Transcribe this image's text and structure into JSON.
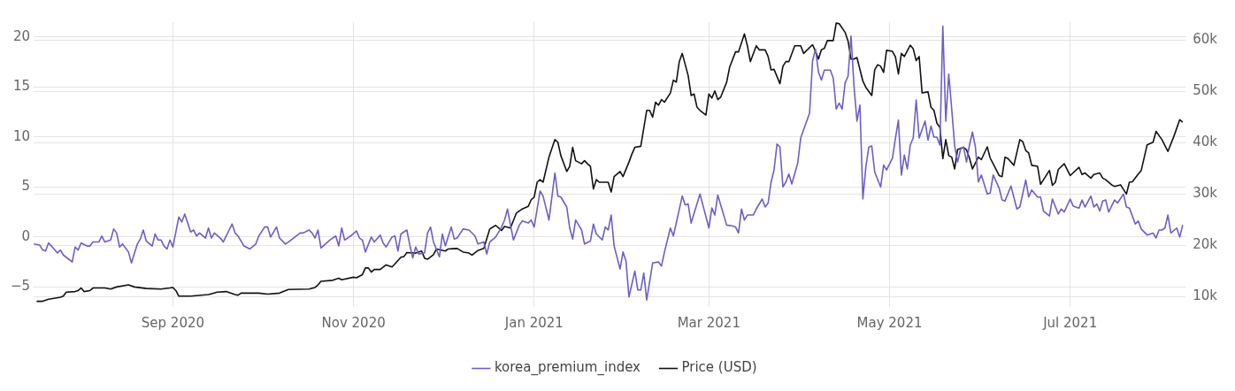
{
  "chart_data": {
    "type": "line",
    "xlim": [
      "2020-07-16",
      "2021-08-09"
    ],
    "xticks": [
      {
        "value": "2020-09-01",
        "label": "Sep 2020"
      },
      {
        "value": "2020-11-01",
        "label": "Nov 2020"
      },
      {
        "value": "2021-01-01",
        "label": "Jan 2021"
      },
      {
        "value": "2021-03-01",
        "label": "Mar 2021"
      },
      {
        "value": "2021-05-01",
        "label": "May 2021"
      },
      {
        "value": "2021-07-01",
        "label": "Jul 2021"
      }
    ],
    "ylim": [
      -7,
      21.5
    ],
    "yticks": [
      {
        "value": -5,
        "label": "−5"
      },
      0,
      5,
      10,
      15,
      20
    ],
    "y2lim": [
      8000,
      63500
    ],
    "y2ticks": [
      {
        "value": 10000,
        "label": "10k"
      },
      {
        "value": 20000,
        "label": "20k"
      },
      {
        "value": 30000,
        "label": "30k"
      },
      {
        "value": 40000,
        "label": "40k"
      },
      {
        "value": 50000,
        "label": "50k"
      },
      {
        "value": 60000,
        "label": "60k"
      }
    ],
    "grid": true,
    "legend": "bottom",
    "marker": "none",
    "line_style": "solid",
    "series": [
      {
        "name": "korea_premium_index",
        "color": "#6c5fc7",
        "x": [
          "2020-07-16",
          "2020-07-18",
          "2020-07-19",
          "2020-07-20",
          "2020-07-21",
          "2020-07-22",
          "2020-07-24",
          "2020-07-25",
          "2020-07-26",
          "2020-07-29",
          "2020-07-30",
          "2020-07-31",
          "2020-08-01",
          "2020-08-03",
          "2020-08-04",
          "2020-08-05",
          "2020-08-07",
          "2020-08-08",
          "2020-08-09",
          "2020-08-11",
          "2020-08-12",
          "2020-08-13",
          "2020-08-14",
          "2020-08-15",
          "2020-08-17",
          "2020-08-18",
          "2020-08-20",
          "2020-08-21",
          "2020-08-22",
          "2020-08-23",
          "2020-08-25",
          "2020-08-26",
          "2020-08-27",
          "2020-08-28",
          "2020-08-29",
          "2020-08-30",
          "2020-08-31",
          "2020-09-01",
          "2020-09-03",
          "2020-09-04",
          "2020-09-05",
          "2020-09-07",
          "2020-09-08",
          "2020-09-09",
          "2020-09-10",
          "2020-09-12",
          "2020-09-13",
          "2020-09-14",
          "2020-09-15",
          "2020-09-17",
          "2020-09-18",
          "2020-09-20",
          "2020-09-21",
          "2020-09-22",
          "2020-09-23",
          "2020-09-25",
          "2020-09-27",
          "2020-09-29",
          "2020-09-30",
          "2020-10-02",
          "2020-10-03",
          "2020-10-04",
          "2020-10-06",
          "2020-10-07",
          "2020-10-09",
          "2020-10-10",
          "2020-10-14",
          "2020-10-15",
          "2020-10-17",
          "2020-10-18",
          "2020-10-19",
          "2020-10-20",
          "2020-10-21",
          "2020-10-24",
          "2020-10-26",
          "2020-10-27",
          "2020-10-28",
          "2020-10-29",
          "2020-10-30",
          "2020-10-31",
          "2020-11-02",
          "2020-11-03",
          "2020-11-04",
          "2020-11-05",
          "2020-11-07",
          "2020-11-08",
          "2020-11-10",
          "2020-11-11",
          "2020-11-12",
          "2020-11-14",
          "2020-11-15",
          "2020-11-16",
          "2020-11-17",
          "2020-11-19",
          "2020-11-20",
          "2020-11-21",
          "2020-11-22",
          "2020-11-23",
          "2020-11-25",
          "2020-11-26",
          "2020-11-27",
          "2020-11-28",
          "2020-11-30",
          "2020-12-01",
          "2020-12-02",
          "2020-12-04",
          "2020-12-05",
          "2020-12-06",
          "2020-12-08",
          "2020-12-10",
          "2020-12-12",
          "2020-12-13",
          "2020-12-15",
          "2020-12-16",
          "2020-12-17",
          "2020-12-19",
          "2020-12-21",
          "2020-12-22",
          "2020-12-23",
          "2020-12-24",
          "2020-12-25",
          "2020-12-27",
          "2020-12-28",
          "2020-12-30",
          "2020-12-31",
          "2021-01-01",
          "2021-01-02",
          "2021-01-03",
          "2021-01-04",
          "2021-01-06",
          "2021-01-08",
          "2021-01-09",
          "2021-01-10",
          "2021-01-12",
          "2021-01-13",
          "2021-01-14",
          "2021-01-15",
          "2021-01-17",
          "2021-01-18",
          "2021-01-20",
          "2021-01-21",
          "2021-01-22",
          "2021-01-24",
          "2021-01-25",
          "2021-01-26",
          "2021-01-27",
          "2021-01-28",
          "2021-01-30",
          "2021-01-31",
          "2021-02-01",
          "2021-02-02",
          "2021-02-04",
          "2021-02-05",
          "2021-02-06",
          "2021-02-07",
          "2021-02-08",
          "2021-02-10",
          "2021-02-12",
          "2021-02-13",
          "2021-02-14",
          "2021-02-16",
          "2021-02-17",
          "2021-02-20",
          "2021-02-21",
          "2021-02-22",
          "2021-02-23",
          "2021-02-26",
          "2021-03-01",
          "2021-03-02",
          "2021-03-03",
          "2021-03-04",
          "2021-03-07",
          "2021-03-09",
          "2021-03-10",
          "2021-03-11",
          "2021-03-12",
          "2021-03-13",
          "2021-03-14",
          "2021-03-16",
          "2021-03-17",
          "2021-03-19",
          "2021-03-20",
          "2021-03-21",
          "2021-03-22",
          "2021-03-23",
          "2021-03-24",
          "2021-03-25",
          "2021-03-26",
          "2021-03-27",
          "2021-03-28",
          "2021-03-29",
          "2021-03-31",
          "2021-04-01",
          "2021-04-04",
          "2021-04-05",
          "2021-04-06",
          "2021-04-07",
          "2021-04-08",
          "2021-04-09",
          "2021-04-11",
          "2021-04-12",
          "2021-04-13",
          "2021-04-14",
          "2021-04-15",
          "2021-04-16",
          "2021-04-17",
          "2021-04-18",
          "2021-04-19",
          "2021-04-20",
          "2021-04-21",
          "2021-04-22",
          "2021-04-23",
          "2021-04-24",
          "2021-04-25",
          "2021-04-26",
          "2021-04-28",
          "2021-04-29",
          "2021-04-30",
          "2021-05-02",
          "2021-05-03",
          "2021-05-04",
          "2021-05-05",
          "2021-05-06",
          "2021-05-07",
          "2021-05-08",
          "2021-05-09",
          "2021-05-10",
          "2021-05-11",
          "2021-05-13",
          "2021-05-14",
          "2021-05-15",
          "2021-05-16",
          "2021-05-17",
          "2021-05-18",
          "2021-05-19",
          "2021-05-20",
          "2021-05-21",
          "2021-05-22",
          "2021-05-23",
          "2021-05-24",
          "2021-05-25",
          "2021-05-26",
          "2021-05-27",
          "2021-05-28",
          "2021-05-29",
          "2021-05-30",
          "2021-05-31",
          "2021-06-01",
          "2021-06-03",
          "2021-06-04",
          "2021-06-05",
          "2021-06-07",
          "2021-06-08",
          "2021-06-09",
          "2021-06-11",
          "2021-06-13",
          "2021-06-14",
          "2021-06-16",
          "2021-06-17",
          "2021-06-18",
          "2021-06-20",
          "2021-06-21",
          "2021-06-22",
          "2021-06-24",
          "2021-06-25",
          "2021-06-27",
          "2021-06-28",
          "2021-06-29",
          "2021-07-01",
          "2021-07-02",
          "2021-07-04",
          "2021-07-05",
          "2021-07-06",
          "2021-07-08",
          "2021-07-09",
          "2021-07-10",
          "2021-07-11",
          "2021-07-12",
          "2021-07-13",
          "2021-07-14",
          "2021-07-16",
          "2021-07-17",
          "2021-07-19",
          "2021-07-20",
          "2021-07-21",
          "2021-07-23",
          "2021-07-24",
          "2021-07-25",
          "2021-07-27",
          "2021-07-29",
          "2021-07-30",
          "2021-07-31",
          "2021-08-01",
          "2021-08-02",
          "2021-08-03",
          "2021-08-04",
          "2021-08-06",
          "2021-08-07",
          "2021-08-08"
        ],
        "values": [
          -0.7,
          -0.8,
          -1.3,
          -1.4,
          -0.6,
          -0.9,
          -1.6,
          -1.3,
          -1.8,
          -2.5,
          -1.0,
          -1.3,
          -0.6,
          -0.9,
          -0.9,
          -0.5,
          -0.5,
          0.1,
          -0.5,
          -0.3,
          0.8,
          0.4,
          -1.0,
          -0.7,
          -1.5,
          -2.6,
          -0.7,
          -0.2,
          0.7,
          -0.4,
          -0.9,
          0.3,
          -0.3,
          -0.3,
          -0.9,
          -1.2,
          -0.3,
          -1.0,
          2.0,
          1.5,
          2.3,
          0.5,
          0.7,
          0.1,
          0.4,
          -0.1,
          0.9,
          -0.1,
          0.4,
          -0.1,
          -0.5,
          0.7,
          1.3,
          0.4,
          0.1,
          -0.9,
          -1.2,
          -0.7,
          0.1,
          1.0,
          1.0,
          0,
          1.0,
          -0.1,
          -0.7,
          -0.5,
          0.4,
          0.4,
          0.7,
          0.4,
          -0.1,
          0.7,
          -1.1,
          -0.3,
          0.1,
          -0.9,
          0.9,
          -0.3,
          -0.1,
          0.1,
          0.6,
          -0.1,
          -0.3,
          -1.5,
          0,
          -0.5,
          0.2,
          -0.6,
          -1.0,
          0,
          0.1,
          -1.4,
          0.3,
          0.7,
          -0.8,
          -2.1,
          -1.0,
          -1.7,
          -1.6,
          0.4,
          1.0,
          -0.5,
          -2.0,
          0.3,
          -0.9,
          1.0,
          -0.2,
          -0.1,
          0.8,
          0.7,
          0.1,
          -0.7,
          -0.5,
          -1.7,
          -0.5,
          0,
          1.0,
          1.7,
          2.8,
          1.2,
          -0.3,
          1.2,
          1.6,
          1.4,
          1.7,
          1.0,
          2.8,
          4.6,
          4.1,
          1.7,
          6.4,
          4.1,
          4.0,
          3.0,
          0.9,
          -0.2,
          1.7,
          0.7,
          -0.7,
          -0.4,
          1.3,
          0.3,
          -0.3,
          1.0,
          0.7,
          2.2,
          -0.9,
          -3.2,
          -1.5,
          -2.4,
          -6.0,
          -3.4,
          -5.3,
          -5.3,
          -3.6,
          -6.3,
          -2.6,
          -2.5,
          -2.9,
          -1.5,
          0.9,
          0.1,
          4.1,
          3.2,
          3.3,
          1.4,
          4.3,
          0.9,
          2.9,
          2.2,
          4.2,
          1.2,
          1.1,
          1.0,
          0.4,
          2.8,
          1.7,
          2.2,
          2.2,
          2.8,
          3.8,
          3.0,
          3.4,
          5.5,
          6.7,
          9.3,
          9.0,
          5.0,
          5.5,
          6.3,
          5.3,
          7.4,
          9.9,
          12.4,
          17.6,
          18.8,
          16.5,
          15.7,
          16.7,
          16.7,
          15.9,
          12.8,
          13.4,
          12.8,
          15.4,
          16.1,
          20.1,
          15.1,
          11.6,
          13.2,
          3.8,
          7.0,
          9.0,
          9.1,
          6.5,
          5.0,
          7.2,
          6.7,
          7.9,
          9.9,
          11.7,
          6.2,
          8.2,
          6.8,
          9.2,
          9.9,
          13.7,
          9.9,
          11.6,
          9.7,
          11.1,
          10.0,
          10.0,
          9.2,
          21.1,
          11.6,
          16.3,
          12.8,
          9.1,
          7.5,
          8.8,
          9.0,
          7.5,
          9.2,
          10.5,
          9.0,
          5.5,
          6.2,
          4.3,
          4.4,
          6.2,
          4.9,
          3.7,
          3.6,
          5.1,
          2.8,
          3.0,
          5.7,
          4.0,
          4.7,
          4.0,
          4.0,
          2.6,
          2.1,
          3.8,
          2.3,
          2.8,
          2.5,
          3.8,
          3.1,
          2.9,
          3.7,
          3.0,
          4.1,
          3.0,
          3.3,
          2.6,
          3.6,
          3.7,
          2.5,
          3.7,
          3.4,
          4.3,
          3.0,
          2.9,
          1.3,
          1.6,
          0.8,
          0.2,
          0.4,
          -0.1,
          0.7,
          0.7,
          0.9,
          2.2,
          0.4,
          0.9,
          0,
          1.2
        ]
      },
      {
        "name": "Price (USD)",
        "color": "#111111",
        "axis": "y2",
        "x": [
          "2020-07-17",
          "2020-07-19",
          "2020-07-21",
          "2020-07-22",
          "2020-07-25",
          "2020-07-26",
          "2020-07-27",
          "2020-07-30",
          "2020-07-31",
          "2020-08-01",
          "2020-08-02",
          "2020-08-04",
          "2020-08-05",
          "2020-08-09",
          "2020-08-11",
          "2020-08-13",
          "2020-08-17",
          "2020-08-19",
          "2020-08-23",
          "2020-08-28",
          "2020-08-31",
          "2020-09-01",
          "2020-09-02",
          "2020-09-03",
          "2020-09-07",
          "2020-09-13",
          "2020-09-16",
          "2020-09-19",
          "2020-09-22",
          "2020-09-23",
          "2020-09-24",
          "2020-09-30",
          "2020-10-03",
          "2020-10-07",
          "2020-10-10",
          "2020-10-17",
          "2020-10-19",
          "2020-10-20",
          "2020-10-21",
          "2020-10-25",
          "2020-10-27",
          "2020-10-28",
          "2020-11-01",
          "2020-11-02",
          "2020-11-04",
          "2020-11-05",
          "2020-11-06",
          "2020-11-07",
          "2020-11-08",
          "2020-11-10",
          "2020-11-12",
          "2020-11-14",
          "2020-11-15",
          "2020-11-17",
          "2020-11-18",
          "2020-11-19",
          "2020-11-22",
          "2020-11-24",
          "2020-11-25",
          "2020-11-26",
          "2020-11-28",
          "2020-11-29",
          "2020-12-02",
          "2020-12-03",
          "2020-12-06",
          "2020-12-08",
          "2020-12-10",
          "2020-12-11",
          "2020-12-13",
          "2020-12-15",
          "2020-12-17",
          "2020-12-19",
          "2020-12-21",
          "2020-12-22",
          "2020-12-24",
          "2020-12-26",
          "2020-12-28",
          "2020-12-30",
          "2020-12-31",
          "2021-01-01",
          "2021-01-02",
          "2021-01-03",
          "2021-01-04",
          "2021-01-06",
          "2021-01-08",
          "2021-01-09",
          "2021-01-10",
          "2021-01-12",
          "2021-01-13",
          "2021-01-14",
          "2021-01-15",
          "2021-01-17",
          "2021-01-18",
          "2021-01-19",
          "2021-01-20",
          "2021-01-21",
          "2021-01-22",
          "2021-01-23",
          "2021-01-26",
          "2021-01-27",
          "2021-01-28",
          "2021-01-30",
          "2021-01-31",
          "2021-02-02",
          "2021-02-03",
          "2021-02-04",
          "2021-02-06",
          "2021-02-08",
          "2021-02-09",
          "2021-02-10",
          "2021-02-11",
          "2021-02-12",
          "2021-02-13",
          "2021-02-14",
          "2021-02-16",
          "2021-02-17",
          "2021-02-18",
          "2021-02-19",
          "2021-02-20",
          "2021-02-22",
          "2021-02-23",
          "2021-02-24",
          "2021-02-25",
          "2021-02-26",
          "2021-02-28",
          "2021-03-01",
          "2021-03-02",
          "2021-03-03",
          "2021-03-04",
          "2021-03-05",
          "2021-03-07",
          "2021-03-08",
          "2021-03-10",
          "2021-03-11",
          "2021-03-13",
          "2021-03-14",
          "2021-03-15",
          "2021-03-17",
          "2021-03-18",
          "2021-03-20",
          "2021-03-21",
          "2021-03-22",
          "2021-03-23",
          "2021-03-25",
          "2021-03-26",
          "2021-03-27",
          "2021-03-28",
          "2021-03-30",
          "2021-04-01",
          "2021-04-02",
          "2021-04-05",
          "2021-04-06",
          "2021-04-07",
          "2021-04-08",
          "2021-04-09",
          "2021-04-10",
          "2021-04-12",
          "2021-04-13",
          "2021-04-14",
          "2021-04-16",
          "2021-04-17",
          "2021-04-18",
          "2021-04-19",
          "2021-04-20",
          "2021-04-22",
          "2021-04-23",
          "2021-04-25",
          "2021-04-26",
          "2021-04-27",
          "2021-04-28",
          "2021-04-29",
          "2021-04-30",
          "2021-05-02",
          "2021-05-03",
          "2021-05-04",
          "2021-05-05",
          "2021-05-06",
          "2021-05-08",
          "2021-05-09",
          "2021-05-10",
          "2021-05-11",
          "2021-05-12",
          "2021-05-14",
          "2021-05-15",
          "2021-05-16",
          "2021-05-17",
          "2021-05-18",
          "2021-05-19",
          "2021-05-20",
          "2021-05-21",
          "2021-05-22",
          "2021-05-23",
          "2021-05-24",
          "2021-05-26",
          "2021-05-27",
          "2021-05-28",
          "2021-05-29",
          "2021-05-31",
          "2021-06-01",
          "2021-06-03",
          "2021-06-04",
          "2021-06-05",
          "2021-06-07",
          "2021-06-08",
          "2021-06-09",
          "2021-06-10",
          "2021-06-12",
          "2021-06-14",
          "2021-06-15",
          "2021-06-16",
          "2021-06-17",
          "2021-06-18",
          "2021-06-20",
          "2021-06-21",
          "2021-06-24",
          "2021-06-25",
          "2021-06-26",
          "2021-06-27",
          "2021-06-29",
          "2021-07-01",
          "2021-07-04",
          "2021-07-05",
          "2021-07-06",
          "2021-07-08",
          "2021-07-09",
          "2021-07-11",
          "2021-07-12",
          "2021-07-13",
          "2021-07-15",
          "2021-07-16",
          "2021-07-18",
          "2021-07-20",
          "2021-07-21",
          "2021-07-22",
          "2021-07-24",
          "2021-07-25",
          "2021-07-27",
          "2021-07-29",
          "2021-07-30",
          "2021-08-01",
          "2021-08-03",
          "2021-08-05",
          "2021-08-07",
          "2021-08-08"
        ],
        "values": [
          9100,
          9100,
          9500,
          9600,
          9900,
          10100,
          10900,
          11000,
          11200,
          11700,
          11000,
          11200,
          11700,
          11700,
          11500,
          11900,
          12300,
          11900,
          11600,
          11500,
          11700,
          11800,
          11200,
          10100,
          10100,
          10400,
          10900,
          11000,
          10400,
          10300,
          10700,
          10700,
          10500,
          10700,
          11400,
          11500,
          11800,
          12300,
          13000,
          13200,
          13600,
          13300,
          13800,
          13700,
          14300,
          15600,
          15600,
          14800,
          15300,
          15300,
          16200,
          15800,
          16400,
          17700,
          17800,
          18600,
          18500,
          18900,
          17500,
          17300,
          18200,
          19300,
          18900,
          19300,
          19400,
          18700,
          18500,
          18100,
          19000,
          19400,
          23200,
          23900,
          22900,
          23700,
          23400,
          26300,
          27100,
          27600,
          28900,
          29400,
          32300,
          32800,
          32300,
          37200,
          40600,
          40100,
          37500,
          34400,
          35400,
          39100,
          36500,
          35900,
          36500,
          35900,
          35400,
          31000,
          32800,
          32300,
          32300,
          30400,
          33400,
          34400,
          33400,
          36200,
          37800,
          39100,
          39300,
          46300,
          46300,
          45000,
          47900,
          47300,
          48400,
          47900,
          49700,
          52200,
          51800,
          55800,
          57400,
          53100,
          49200,
          49500,
          46900,
          46300,
          45400,
          49500,
          48700,
          50100,
          48400,
          48900,
          51800,
          54700,
          57700,
          57700,
          61200,
          58900,
          55800,
          58900,
          58100,
          58100,
          56800,
          54200,
          54300,
          51500,
          54900,
          55800,
          55800,
          58900,
          58900,
          57400,
          59100,
          57800,
          56300,
          58100,
          58400,
          59900,
          59900,
          63300,
          63200,
          61500,
          59800,
          56300,
          56300,
          56600,
          52000,
          50800,
          49200,
          54200,
          55200,
          54900,
          53700,
          58000,
          57800,
          56700,
          53400,
          57400,
          56800,
          59000,
          58300,
          56000,
          56800,
          49700,
          49900,
          46900,
          46300,
          43800,
          43000,
          36900,
          40600,
          37500,
          37200,
          34900,
          38700,
          39100,
          38600,
          37000,
          34900,
          37200,
          36700,
          39200,
          37000,
          35900,
          33600,
          33400,
          37200,
          36900,
          35600,
          40600,
          40200,
          38500,
          38000,
          35600,
          35400,
          31900,
          34600,
          31700,
          32300,
          34800,
          35900,
          33600,
          35200,
          33800,
          34100,
          33100,
          33800,
          34100,
          33100,
          32800,
          31800,
          31500,
          31800,
          30000,
          32300,
          32400,
          33900,
          34600,
          39600,
          40100,
          42200,
          40600,
          38300,
          41200,
          44500,
          44000
        ]
      }
    ]
  }
}
